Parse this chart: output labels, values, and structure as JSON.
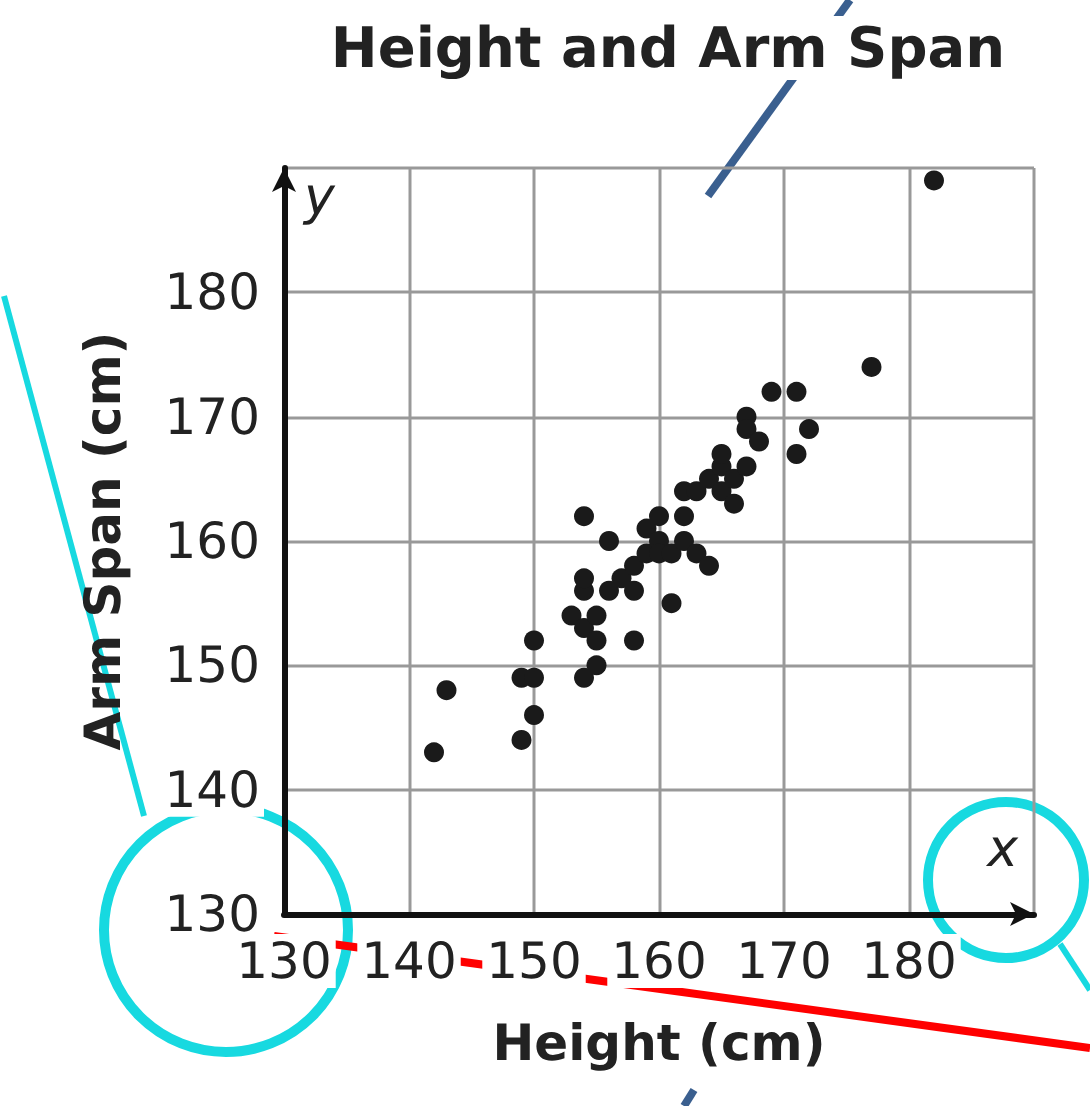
{
  "chart_data": {
    "type": "scatter",
    "title": "Height and Arm Span",
    "xlabel": "Height (cm)",
    "ylabel": "Arm Span (cm)",
    "annotations": [
      "x",
      "y"
    ],
    "x": [
      142,
      143,
      149,
      149,
      150,
      150,
      150,
      153,
      154,
      154,
      154,
      154,
      154,
      155,
      155,
      155,
      156,
      156,
      157,
      158,
      158,
      158,
      159,
      159,
      160,
      160,
      160,
      161,
      161,
      162,
      162,
      162,
      163,
      163,
      164,
      164,
      165,
      165,
      165,
      166,
      166,
      167,
      167,
      167,
      168,
      169,
      171,
      171,
      172,
      177,
      182
    ],
    "values": [
      143,
      148,
      144,
      149,
      146,
      149,
      152,
      154,
      149,
      153,
      156,
      157,
      162,
      150,
      152,
      154,
      156,
      160,
      157,
      152,
      158,
      156,
      159,
      161,
      162,
      160,
      159,
      155,
      159,
      160,
      162,
      164,
      164,
      159,
      158,
      165,
      164,
      166,
      167,
      165,
      163,
      166,
      170,
      169,
      168,
      172,
      172,
      167,
      169,
      174,
      189
    ],
    "color": "#1a1a1a",
    "marker": "circle",
    "xlim": [
      130,
      190
    ],
    "xticks": [
      130,
      140,
      150,
      160,
      170,
      180,
      {
        "value": 190,
        "label": null
      }
    ],
    "ylim": [
      130,
      190
    ],
    "yticks": [
      130,
      140,
      150,
      160,
      170,
      180,
      {
        "value": 190,
        "label": null
      }
    ],
    "grid": true
  }
}
